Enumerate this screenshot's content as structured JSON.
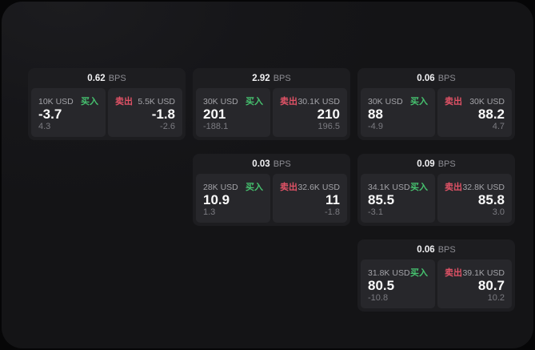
{
  "labels": {
    "bps_unit": "BPS",
    "buy": "买入",
    "sell": "卖出"
  },
  "colors": {
    "buy_accent": "#46c26f",
    "sell_accent": "#e05266",
    "window_bg": "#161619",
    "card_bg": "#1d1d20",
    "panel_bg": "#27272b"
  },
  "cards": [
    {
      "bps": "0.62",
      "buy": {
        "amount": "10K USD",
        "price": "-3.7",
        "sub": "4.3"
      },
      "sell": {
        "amount": "5.5K USD",
        "price": "-1.8",
        "sub": "-2.6"
      }
    },
    {
      "bps": "2.92",
      "buy": {
        "amount": "30K USD",
        "price": "201",
        "sub": "-188.1"
      },
      "sell": {
        "amount": "30.1K USD",
        "price": "210",
        "sub": "196.5"
      }
    },
    {
      "bps": "0.06",
      "buy": {
        "amount": "30K USD",
        "price": "88",
        "sub": "-4.9"
      },
      "sell": {
        "amount": "30K USD",
        "price": "88.2",
        "sub": "4.7"
      }
    },
    {
      "bps": "0.03",
      "buy": {
        "amount": "28K USD",
        "price": "10.9",
        "sub": "1.3"
      },
      "sell": {
        "amount": "32.6K USD",
        "price": "11",
        "sub": "-1.8"
      }
    },
    {
      "bps": "0.09",
      "buy": {
        "amount": "34.1K USD",
        "price": "85.5",
        "sub": "-3.1"
      },
      "sell": {
        "amount": "32.8K USD",
        "price": "85.8",
        "sub": "3.0"
      }
    },
    {
      "bps": "0.06",
      "buy": {
        "amount": "31.8K USD",
        "price": "80.5",
        "sub": "-10.8"
      },
      "sell": {
        "amount": "39.1K USD",
        "price": "80.7",
        "sub": "10.2"
      }
    }
  ],
  "layout_columns": [
    [
      0
    ],
    [
      1,
      3
    ],
    [
      2,
      4,
      5
    ]
  ]
}
